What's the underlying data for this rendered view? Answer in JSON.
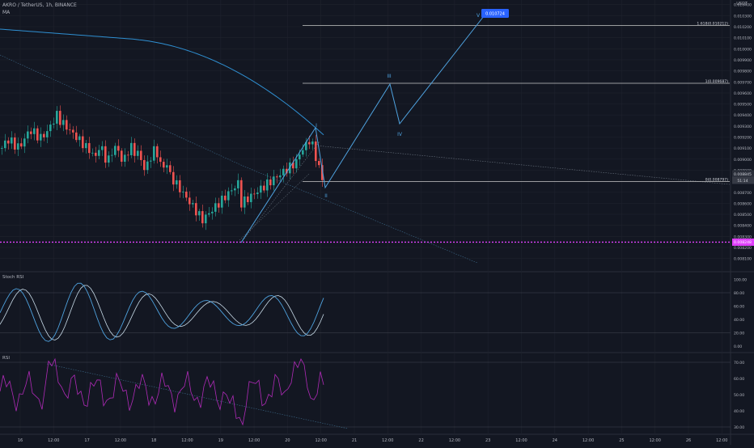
{
  "header": {
    "symbol_line": "AKRO / TetherUS, 1h, BINANCE",
    "indicator": "MA"
  },
  "colors": {
    "background": "#131722",
    "grid": "#1e222d",
    "up_candle": "#26a69a",
    "down_candle": "#ef5350",
    "ma_line": "#2f8fd1",
    "wave_line": "#4fa3e0",
    "support_line": "#e040fb",
    "rsi_line": "#b02ab8",
    "stoch_k": "#4fa3e0",
    "stoch_d": "#c8dbe8"
  },
  "price_axis": {
    "currency": "USDT",
    "ticks": [
      "0.010400",
      "0.010300",
      "0.010200",
      "0.010100",
      "0.010000",
      "0.009900",
      "0.009800",
      "0.009700",
      "0.009600",
      "0.009500",
      "0.009400",
      "0.009300",
      "0.009200",
      "0.009100",
      "0.009000",
      "0.008900",
      "0.008800",
      "0.008700",
      "0.008600",
      "0.008500",
      "0.008400",
      "0.008300",
      "0.008200",
      "0.008100"
    ],
    "current_price_tag": "0.008845",
    "countdown_tag": "51:14",
    "support_tag": "0.008248"
  },
  "fib_levels": [
    {
      "label": "1.618(0.010212)",
      "value": 0.010212
    },
    {
      "label": "1(0.009687)",
      "value": 0.009687
    },
    {
      "label": "0(0.008797)",
      "value": 0.008797
    }
  ],
  "elliott_wave": {
    "labels": [
      "I",
      "II",
      "III",
      "IV",
      "V"
    ],
    "target_tag": "0.010724"
  },
  "stoch_rsi": {
    "title": "Stoch RSI",
    "ticks": [
      "100.00",
      "80.00",
      "60.00",
      "40.00",
      "20.00",
      "0.00"
    ]
  },
  "rsi": {
    "title": "RSI",
    "ticks": [
      "70.00",
      "60.00",
      "50.00",
      "40.00",
      "30.00"
    ]
  },
  "time_axis": {
    "labels": [
      "16",
      "12:00",
      "17",
      "12:00",
      "18",
      "12:00",
      "19",
      "12:00",
      "20",
      "12:00",
      "21",
      "12:00",
      "22",
      "12:00",
      "23",
      "12:00",
      "24",
      "12:00",
      "25",
      "12:00",
      "26",
      "12:00"
    ]
  }
}
